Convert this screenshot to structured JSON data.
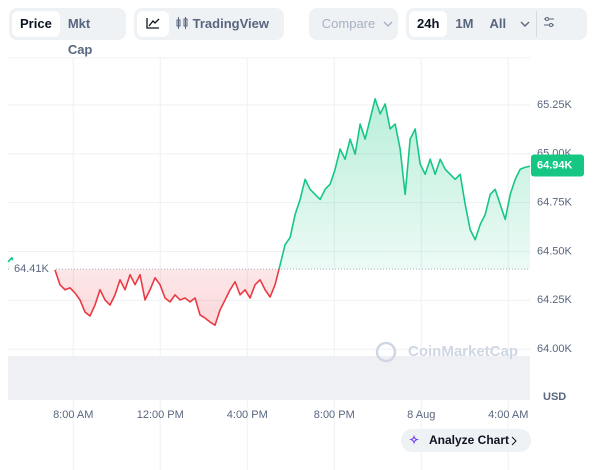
{
  "toolbar": {
    "price": "Price",
    "mkt_cap": "Mkt Cap",
    "tradingview": "TradingView",
    "compare": "Compare",
    "ranges": [
      "24h",
      "1M",
      "All"
    ]
  },
  "analyze": "Analyze Chart",
  "watermark": "CoinMarketCap",
  "chart_data": {
    "type": "line",
    "y_axis_label": "USD",
    "x": [
      5.0,
      5.18,
      5.32,
      6.2,
      7.16,
      7.39,
      7.62,
      7.85,
      8.08,
      8.31,
      8.54,
      8.77,
      9.0,
      9.23,
      9.46,
      9.69,
      9.92,
      10.15,
      10.38,
      10.61,
      10.84,
      11.07,
      11.3,
      11.53,
      11.76,
      11.99,
      12.22,
      12.45,
      12.68,
      12.91,
      13.14,
      13.37,
      13.6,
      13.83,
      14.06,
      14.29,
      14.52,
      14.75,
      14.98,
      15.21,
      15.44,
      15.67,
      15.9,
      16.13,
      16.36,
      16.59,
      16.82,
      17.05,
      17.28,
      17.51,
      17.74,
      17.97,
      18.2,
      18.43,
      18.66,
      18.89,
      19.12,
      19.35,
      19.58,
      19.81,
      20.04,
      20.27,
      20.5,
      20.73,
      20.96,
      21.19,
      21.42,
      21.65,
      21.88,
      22.11,
      22.34,
      22.57,
      22.8,
      23.03,
      23.26,
      23.49,
      23.72,
      23.95,
      24.18,
      24.41,
      24.64,
      24.87,
      25.1,
      25.33,
      25.56,
      25.79,
      26.02,
      26.25,
      26.48,
      26.71,
      26.94,
      27.17,
      27.4,
      27.63,
      27.86,
      28.09,
      28.32,
      28.55,
      28.78,
      29.0
    ],
    "series": [
      {
        "color": "#16c784",
        "values": [
          64447,
          64468,
          64417,
          null,
          64406,
          64330,
          64304,
          64314,
          64288,
          64252,
          64190,
          64170,
          64226,
          64304,
          64252,
          64226,
          64278,
          64355,
          64304,
          64381,
          64330,
          64381,
          64252,
          64304,
          64365,
          64330,
          64262,
          64242,
          64278,
          64252,
          64262,
          64242,
          64262,
          64175,
          64159,
          64139,
          64123,
          64201,
          64252,
          64304,
          64345,
          64278,
          64304,
          64262,
          64330,
          64355,
          64304,
          64267,
          64330,
          64432,
          64535,
          64571,
          64689,
          64766,
          64869,
          64818,
          64792,
          64766,
          64818,
          64844,
          64921,
          65024,
          64972,
          65075,
          64998,
          65152,
          65075,
          65178,
          65281,
          65204,
          65255,
          65127,
          65152,
          65024,
          64792,
          65075,
          65127,
          64947,
          64895,
          64972,
          64895,
          64972,
          64921,
          64895,
          64869,
          64895,
          64741,
          64612,
          64560,
          64638,
          64689,
          64792,
          64818,
          64741,
          64664,
          64792,
          64869,
          64921,
          64931,
          64936
        ]
      }
    ],
    "below_color": "#ea3943",
    "baseline": {
      "value": 64410,
      "label": "64.41K"
    },
    "last_price": {
      "value": 64940,
      "label": "64.94K"
    },
    "xlim": [
      5,
      29
    ],
    "xticks": [
      {
        "value": 8,
        "label": "8:00 AM"
      },
      {
        "value": 12,
        "label": "12:00 PM"
      },
      {
        "value": 16,
        "label": "4:00 PM"
      },
      {
        "value": 20,
        "label": "8:00 PM"
      },
      {
        "value": 24,
        "label": "8 Aug"
      },
      {
        "value": 28,
        "label": "4:00 AM"
      }
    ],
    "ylim": [
      63740,
      65490
    ],
    "yticks": [
      {
        "value": 64000,
        "label": "64.00K"
      },
      {
        "value": 64250,
        "label": "64.25K"
      },
      {
        "value": 64500,
        "label": "64.50K"
      },
      {
        "value": 64750,
        "label": "64.75K"
      },
      {
        "value": 65000,
        "label": "65.00K"
      },
      {
        "value": 65250,
        "label": "65.25K"
      }
    ],
    "grid": true
  }
}
